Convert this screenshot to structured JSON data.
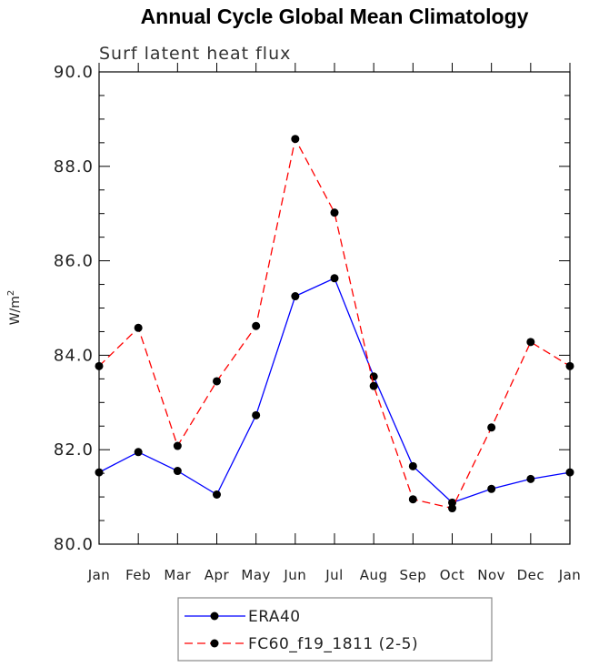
{
  "chart_data": {
    "type": "line",
    "title": "Annual Cycle Global Mean Climatology",
    "subtitle": "Surf latent heat flux",
    "ylabel": "W/m",
    "ylabel_sup": "2",
    "categories": [
      "Jan",
      "Feb",
      "Mar",
      "Apr",
      "May",
      "Jun",
      "Jul",
      "Aug",
      "Sep",
      "Oct",
      "Nov",
      "Dec",
      "Jan"
    ],
    "ylim": [
      80.0,
      90.0
    ],
    "yticks": [
      "80.0",
      "82.0",
      "84.0",
      "86.0",
      "88.0",
      "90.0"
    ],
    "series": [
      {
        "name": "ERA40",
        "color": "#0000ff",
        "dash": "solid",
        "values": [
          81.52,
          81.95,
          81.55,
          81.05,
          82.73,
          85.25,
          85.63,
          83.55,
          81.65,
          80.88,
          81.17,
          81.38,
          81.52
        ]
      },
      {
        "name": "FC60_f19_1811 (2-5)",
        "color": "#ff0000",
        "dash": "dashed",
        "values": [
          83.77,
          84.58,
          82.08,
          83.45,
          84.62,
          88.58,
          87.02,
          83.35,
          80.95,
          80.76,
          82.47,
          84.28,
          83.77
        ]
      }
    ],
    "legend_position": "bottom-center",
    "grid": false
  }
}
